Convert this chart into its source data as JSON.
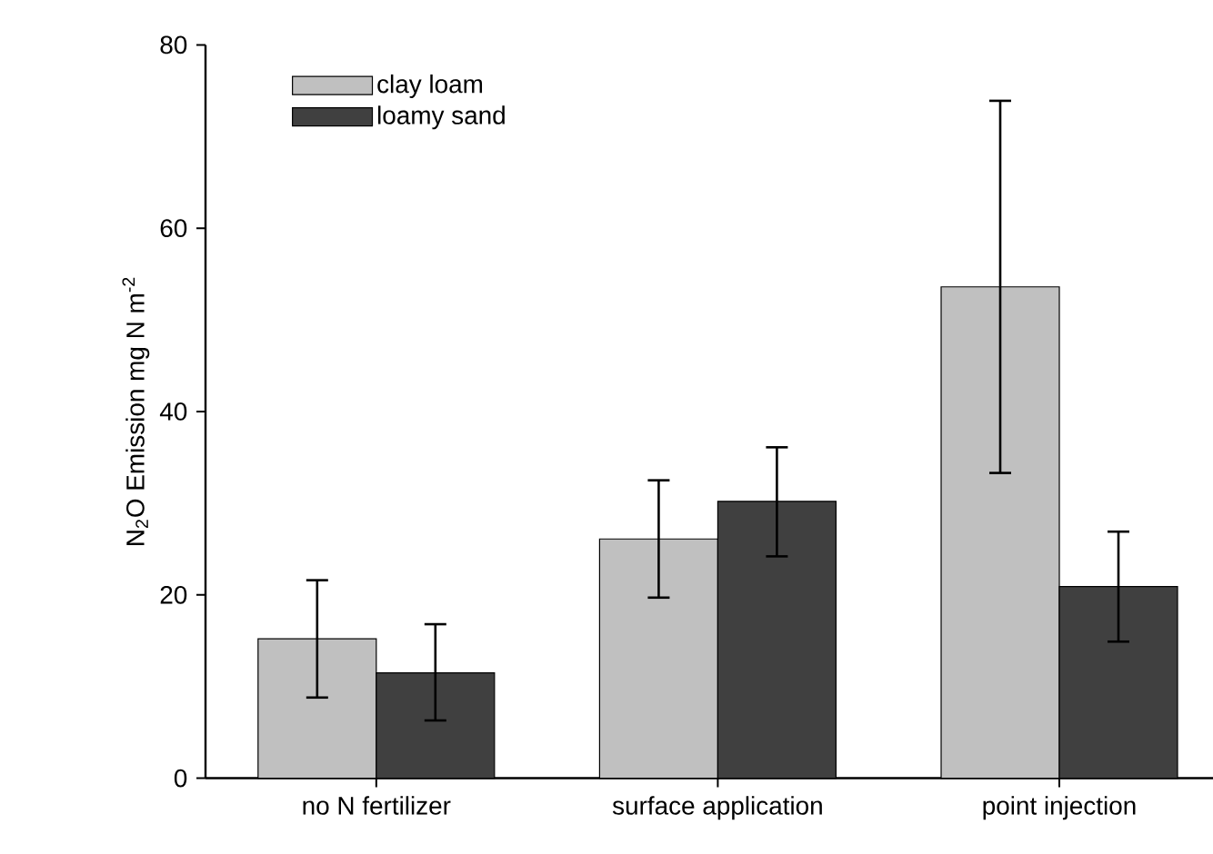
{
  "chart_data": {
    "type": "bar",
    "ylabel": "N$_{2}$O Emission mg N  m$^{-2}$",
    "categories": [
      "no N fertilizer",
      "surface application",
      "point injection"
    ],
    "series": [
      {
        "name": "clay loam",
        "color": "#c0c0c0",
        "values": [
          15.2,
          26.1,
          53.6
        ],
        "errors": [
          [
            8.8,
            21.6
          ],
          [
            19.7,
            32.5
          ],
          [
            33.3,
            73.9
          ]
        ]
      },
      {
        "name": "loamy sand",
        "color": "#404040",
        "values": [
          11.5,
          30.2,
          20.9
        ],
        "errors": [
          [
            6.3,
            16.8
          ],
          [
            24.2,
            36.1
          ],
          [
            14.9,
            26.9
          ]
        ]
      }
    ],
    "ylim": [
      0,
      80
    ],
    "yticks": [
      0,
      20,
      40,
      60,
      80
    ],
    "legend": "top left",
    "grid": false
  }
}
